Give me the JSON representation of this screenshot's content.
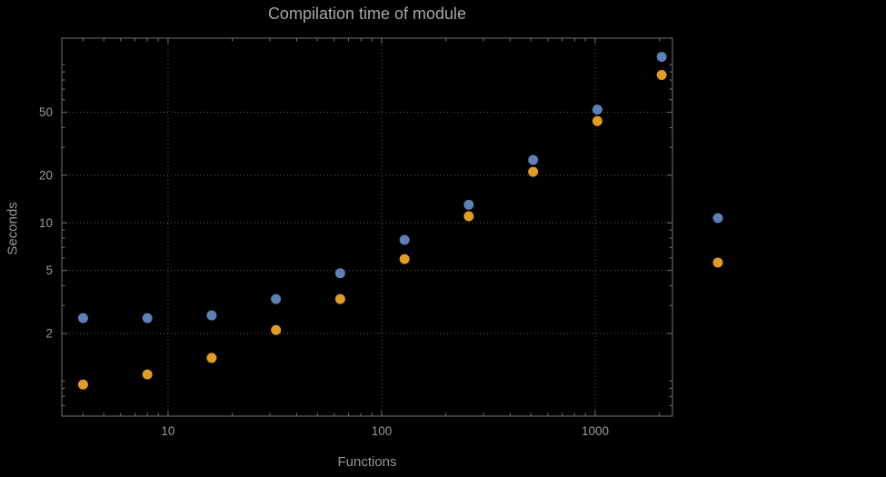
{
  "chart_data": {
    "type": "scatter",
    "title": "Compilation time of module",
    "xlabel": "Functions",
    "ylabel": "Seconds",
    "xscale": "log",
    "yscale": "log",
    "xlim": [
      3.18,
      2300
    ],
    "ylim": [
      0.6,
      147
    ],
    "grid": "dotted",
    "xticks": [
      {
        "value": 10,
        "label": "10"
      },
      {
        "value": 100,
        "label": "100"
      },
      {
        "value": 1000,
        "label": "1000"
      }
    ],
    "yticks": [
      {
        "value": 2,
        "label": "2"
      },
      {
        "value": 5,
        "label": "5"
      },
      {
        "value": 10,
        "label": "10"
      },
      {
        "value": 20,
        "label": "20"
      },
      {
        "value": 50,
        "label": "50"
      }
    ],
    "x": [
      4,
      8,
      16,
      32,
      64,
      128,
      256,
      512,
      1024,
      2048
    ],
    "series": [
      {
        "name": "series-blue",
        "color": "#5e81b5",
        "values": [
          2.5,
          2.5,
          2.6,
          3.3,
          4.8,
          7.8,
          13,
          25,
          52,
          112
        ]
      },
      {
        "name": "series-orange",
        "color": "#e19c24",
        "values": [
          0.95,
          1.1,
          1.4,
          2.1,
          3.3,
          5.9,
          11,
          21,
          44,
          86
        ]
      }
    ],
    "legend": {
      "position": "right",
      "markers": [
        {
          "name": "legend-marker-blue",
          "color": "#5e81b5"
        },
        {
          "name": "legend-marker-orange",
          "color": "#e19c24"
        }
      ]
    }
  },
  "colors": {
    "background": "#000000",
    "frame": "#737373",
    "grid": "#5c5c5c",
    "tick_text": "#9a9a9c",
    "title_text": "#a6a6a8"
  }
}
